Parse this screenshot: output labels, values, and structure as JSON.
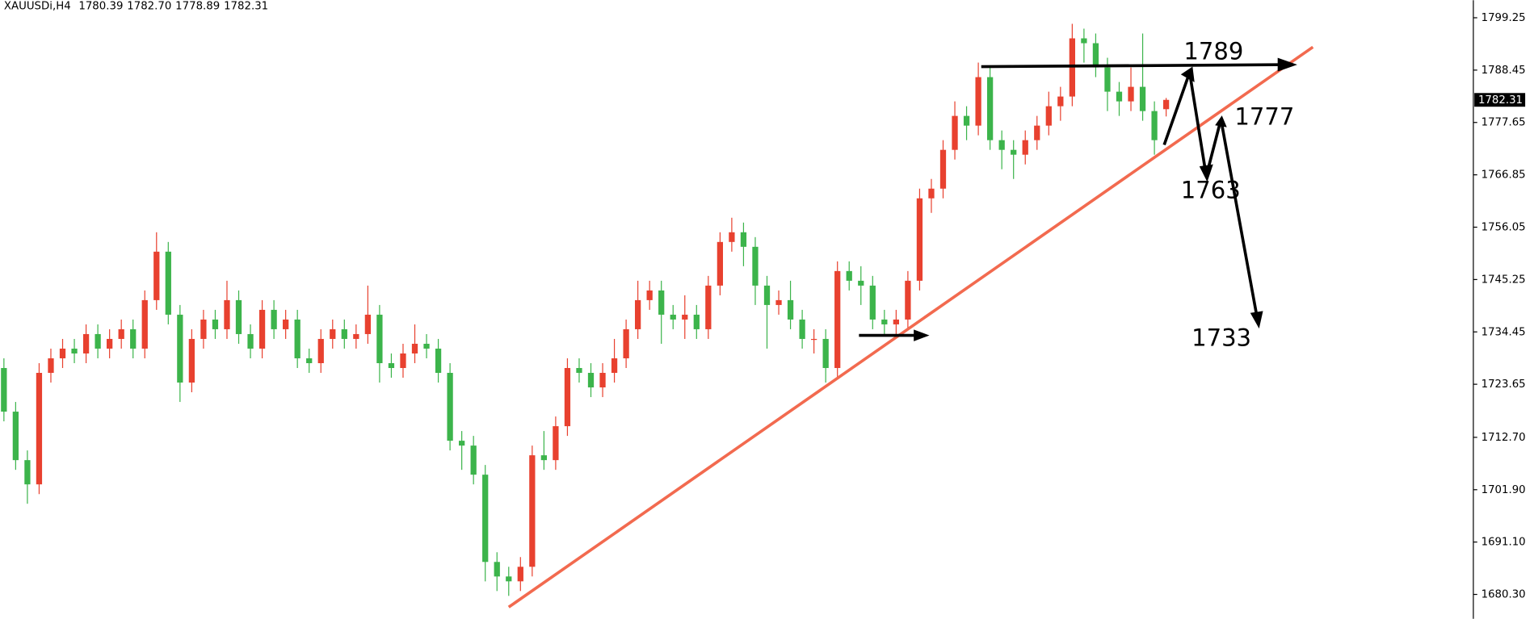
{
  "chart_data": {
    "type": "candlestick",
    "symbol": "XAUUSDi,H4",
    "header_values": [
      "1780.39",
      "1782.70",
      "1778.89",
      "1782.31"
    ],
    "ylim": [
      1675.26,
      1802.88
    ],
    "yticks": [
      {
        "value": 1680.3,
        "label": "1680.30"
      },
      {
        "value": 1691.1,
        "label": "1691.10"
      },
      {
        "value": 1701.9,
        "label": "1701.90"
      },
      {
        "value": 1712.7,
        "label": "1712.70"
      },
      1723.65,
      1734.45,
      1745.25,
      1756.05,
      1766.85,
      1777.65,
      1788.45,
      1799.25
    ],
    "up_color": "#e8412f",
    "down_color": "#3cb44b",
    "series": {
      "open": [
        1727,
        1718,
        1708,
        1703,
        1726,
        1729,
        1731,
        1730,
        1734,
        1731,
        1733,
        1735,
        1731,
        1741,
        1751,
        1738,
        1724,
        1733,
        1737,
        1735,
        1741,
        1734,
        1731,
        1739,
        1735,
        1737,
        1729,
        1728,
        1733,
        1735,
        1733,
        1734,
        1738,
        1728,
        1727,
        1730,
        1732,
        1731,
        1726,
        1712,
        1711,
        1705,
        1687,
        1684,
        1683,
        1686,
        1709,
        1708,
        1715,
        1727,
        1726,
        1723,
        1726,
        1729,
        1735,
        1741,
        1743,
        1738,
        1737,
        1738,
        1735,
        1744,
        1753,
        1755,
        1752,
        1744,
        1740,
        1741,
        1737,
        1733,
        1733,
        1727,
        1747,
        1745,
        1744,
        1737,
        1736,
        1737,
        1745,
        1762,
        1764,
        1772,
        1779,
        1777,
        1787,
        1774,
        1772,
        1771,
        1774,
        1777,
        1781,
        1783,
        1795,
        1794,
        1789,
        1784,
        1782,
        1785,
        1780,
        1780.39
      ],
      "high": [
        1729,
        1720,
        1710,
        1728,
        1731,
        1733,
        1733,
        1736,
        1736,
        1735,
        1737,
        1737,
        1743,
        1755,
        1753,
        1740,
        1735,
        1739,
        1739,
        1745,
        1743,
        1736,
        1741,
        1741,
        1739,
        1739,
        1731,
        1735,
        1737,
        1737,
        1736,
        1744,
        1740,
        1730,
        1732,
        1736,
        1734,
        1733,
        1728,
        1714,
        1713,
        1707,
        1689,
        1686,
        1688,
        1711,
        1714,
        1717,
        1729,
        1729,
        1728,
        1728,
        1733,
        1737,
        1745,
        1745,
        1745,
        1740,
        1742,
        1740,
        1746,
        1755,
        1758,
        1757,
        1754,
        1746,
        1743,
        1745,
        1739,
        1735,
        1735,
        1749,
        1749,
        1748,
        1746,
        1739,
        1739,
        1747,
        1764,
        1766,
        1774,
        1782,
        1781,
        1790,
        1789,
        1776,
        1774,
        1776,
        1779,
        1784,
        1785,
        1798,
        1797,
        1796,
        1791,
        1786,
        1789,
        1796,
        1782,
        1782.7
      ],
      "low": [
        1716,
        1706,
        1699,
        1701,
        1724,
        1727,
        1728,
        1728,
        1729,
        1729,
        1731,
        1729,
        1729,
        1739,
        1736,
        1720,
        1722,
        1731,
        1733,
        1733,
        1732,
        1729,
        1729,
        1733,
        1733,
        1727,
        1726,
        1726,
        1731,
        1731,
        1731,
        1732,
        1724,
        1725,
        1725,
        1728,
        1729,
        1724,
        1710,
        1706,
        1703,
        1683,
        1681,
        1680,
        1681,
        1684,
        1706,
        1706,
        1713,
        1724,
        1721,
        1721,
        1724,
        1727,
        1733,
        1739,
        1732,
        1735,
        1733,
        1733,
        1733,
        1742,
        1751,
        1748,
        1740,
        1731,
        1738,
        1735,
        1731,
        1730,
        1724,
        1725,
        1743,
        1740,
        1735,
        1734,
        1734,
        1735,
        1743,
        1759,
        1762,
        1770,
        1774,
        1775,
        1772,
        1768,
        1766,
        1769,
        1772,
        1775,
        1778,
        1781,
        1790,
        1787,
        1780,
        1779,
        1780,
        1778,
        1771,
        1778.89
      ],
      "close": [
        1718,
        1708,
        1703,
        1726,
        1729,
        1731,
        1730,
        1734,
        1731,
        1733,
        1735,
        1731,
        1741,
        1751,
        1738,
        1724,
        1733,
        1737,
        1735,
        1741,
        1734,
        1731,
        1739,
        1735,
        1737,
        1729,
        1728,
        1733,
        1735,
        1733,
        1734,
        1738,
        1728,
        1727,
        1730,
        1732,
        1731,
        1726,
        1712,
        1711,
        1705,
        1687,
        1684,
        1683,
        1686,
        1709,
        1708,
        1715,
        1727,
        1726,
        1723,
        1726,
        1729,
        1735,
        1741,
        1743,
        1738,
        1737,
        1738,
        1735,
        1744,
        1753,
        1755,
        1752,
        1744,
        1740,
        1741,
        1737,
        1733,
        1733,
        1727,
        1747,
        1745,
        1744,
        1737,
        1736,
        1737,
        1745,
        1762,
        1764,
        1772,
        1779,
        1777,
        1787,
        1774,
        1772,
        1771,
        1774,
        1777,
        1781,
        1783,
        1795,
        1794,
        1789,
        1784,
        1782,
        1785,
        1780,
        1774,
        1782.31
      ]
    },
    "annotations": [
      "1789",
      "1777",
      "1763",
      "1733"
    ]
  }
}
